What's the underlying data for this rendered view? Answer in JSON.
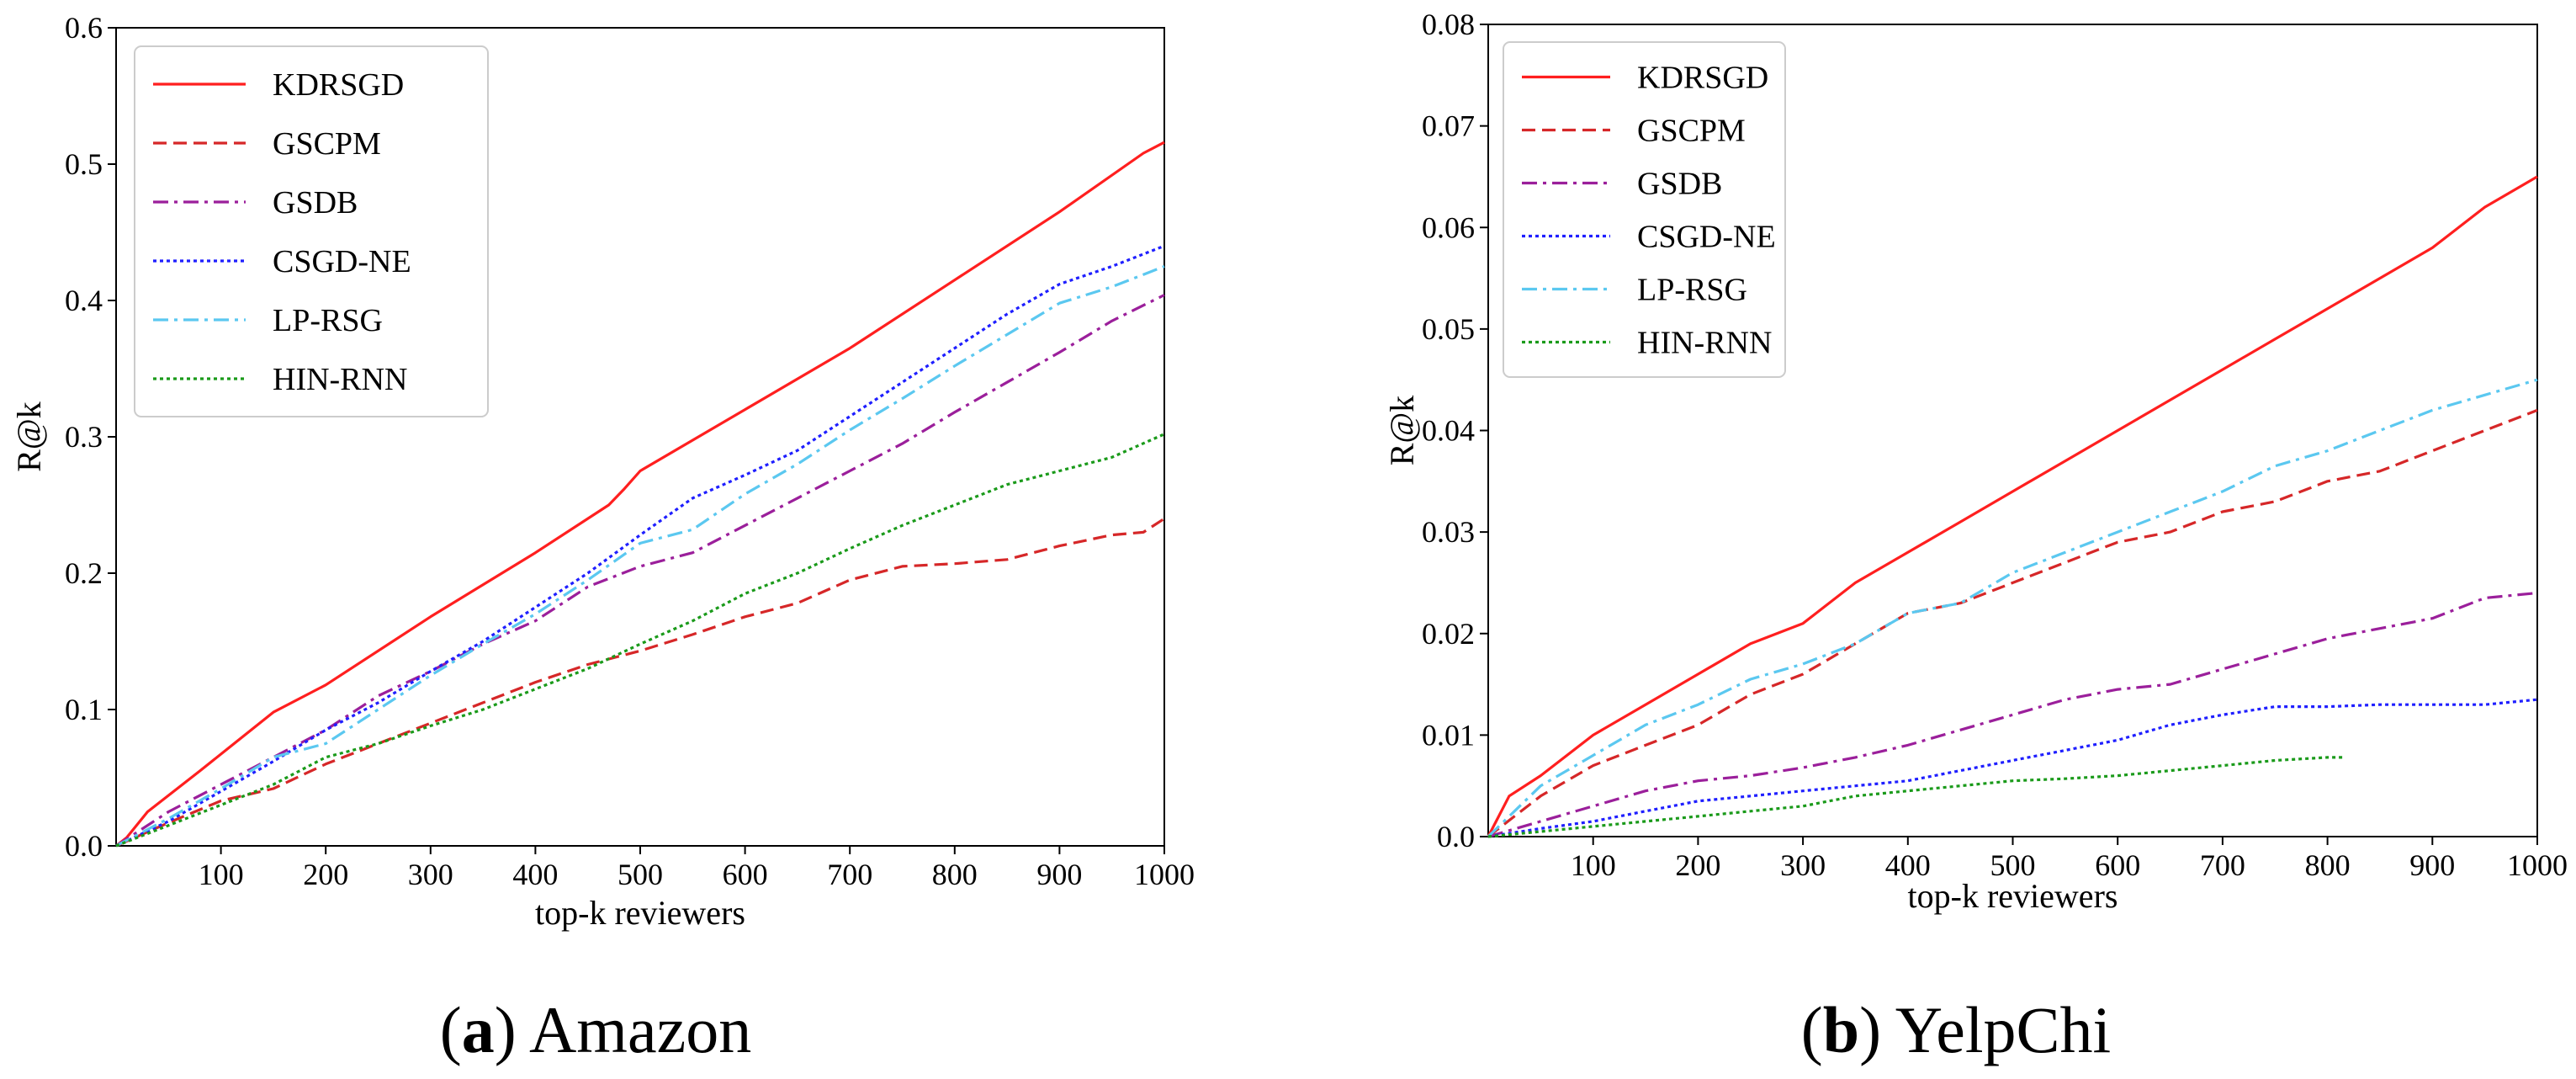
{
  "chart_data": [
    {
      "type": "line",
      "panel": "a",
      "caption_letter": "a",
      "caption_name": "Amazon",
      "xlabel": "top-k reviewers",
      "ylabel": "R@k",
      "xlim": [
        0,
        1000
      ],
      "ylim": [
        0,
        0.6
      ],
      "xticks": [
        100,
        200,
        300,
        400,
        500,
        600,
        700,
        800,
        900,
        1000
      ],
      "yticks": [
        0.0,
        0.1,
        0.2,
        0.3,
        0.4,
        0.5,
        0.6
      ],
      "ytick_labels": [
        "0.0",
        "0.1",
        "0.2",
        "0.3",
        "0.4",
        "0.5",
        "0.6"
      ],
      "legend_position": "top-left",
      "series": [
        {
          "name": "KDRSGD",
          "color": "#ff1f1f",
          "dash": "solid",
          "x": [
            0,
            10,
            30,
            80,
            150,
            200,
            300,
            400,
            470,
            485,
            500,
            600,
            700,
            800,
            900,
            980,
            1000
          ],
          "y": [
            0,
            0.006,
            0.025,
            0.055,
            0.098,
            0.118,
            0.168,
            0.215,
            0.25,
            0.262,
            0.275,
            0.32,
            0.365,
            0.415,
            0.465,
            0.508,
            0.516
          ]
        },
        {
          "name": "GSCPM",
          "color": "#d62728",
          "dash": "dashed",
          "x": [
            0,
            50,
            100,
            150,
            200,
            250,
            300,
            350,
            400,
            450,
            500,
            550,
            600,
            650,
            700,
            750,
            800,
            850,
            900,
            950,
            980,
            1000
          ],
          "y": [
            0,
            0.017,
            0.033,
            0.042,
            0.06,
            0.075,
            0.09,
            0.105,
            0.12,
            0.133,
            0.143,
            0.155,
            0.168,
            0.178,
            0.195,
            0.205,
            0.207,
            0.21,
            0.22,
            0.228,
            0.23,
            0.24
          ]
        },
        {
          "name": "GSDB",
          "color": "#9b1f9b",
          "dash": "dashdot",
          "x": [
            0,
            50,
            100,
            150,
            200,
            250,
            300,
            350,
            400,
            450,
            500,
            550,
            600,
            650,
            700,
            750,
            800,
            850,
            900,
            950,
            1000
          ],
          "y": [
            0,
            0.025,
            0.045,
            0.065,
            0.085,
            0.11,
            0.128,
            0.148,
            0.165,
            0.19,
            0.205,
            0.215,
            0.235,
            0.255,
            0.275,
            0.295,
            0.318,
            0.34,
            0.362,
            0.385,
            0.404
          ]
        },
        {
          "name": "CSGD-NE",
          "color": "#1f1fff",
          "dash": "dotted",
          "x": [
            0,
            50,
            100,
            150,
            200,
            250,
            300,
            350,
            400,
            450,
            500,
            550,
            600,
            650,
            700,
            750,
            800,
            850,
            900,
            950,
            1000
          ],
          "y": [
            0,
            0.018,
            0.04,
            0.062,
            0.085,
            0.105,
            0.128,
            0.15,
            0.175,
            0.2,
            0.228,
            0.255,
            0.272,
            0.29,
            0.315,
            0.34,
            0.365,
            0.39,
            0.412,
            0.425,
            0.44
          ]
        },
        {
          "name": "LP-RSG",
          "color": "#5bc8f0",
          "dash": "dashdot",
          "x": [
            0,
            50,
            100,
            150,
            200,
            250,
            300,
            350,
            400,
            450,
            500,
            550,
            600,
            650,
            700,
            750,
            800,
            850,
            900,
            950,
            1000
          ],
          "y": [
            0,
            0.02,
            0.042,
            0.065,
            0.075,
            0.1,
            0.125,
            0.148,
            0.17,
            0.195,
            0.222,
            0.232,
            0.258,
            0.28,
            0.305,
            0.328,
            0.352,
            0.375,
            0.398,
            0.41,
            0.425
          ]
        },
        {
          "name": "HIN-RNN",
          "color": "#1a9a1a",
          "dash": "dotted",
          "x": [
            0,
            50,
            100,
            150,
            200,
            250,
            300,
            350,
            400,
            450,
            500,
            550,
            600,
            650,
            700,
            750,
            800,
            850,
            900,
            950,
            1000
          ],
          "y": [
            0,
            0.015,
            0.03,
            0.045,
            0.065,
            0.075,
            0.088,
            0.1,
            0.115,
            0.13,
            0.148,
            0.165,
            0.185,
            0.2,
            0.218,
            0.235,
            0.25,
            0.265,
            0.275,
            0.285,
            0.302
          ]
        }
      ]
    },
    {
      "type": "line",
      "panel": "b",
      "caption_letter": "b",
      "caption_name": "YelpChi",
      "xlabel": "top-k reviewers",
      "ylabel": "R@k",
      "xlim": [
        0,
        1000
      ],
      "ylim": [
        0,
        0.08
      ],
      "xticks": [
        100,
        200,
        300,
        400,
        500,
        600,
        700,
        800,
        900,
        1000
      ],
      "yticks": [
        0.0,
        0.01,
        0.02,
        0.03,
        0.04,
        0.05,
        0.06,
        0.07,
        0.08
      ],
      "ytick_labels": [
        "0.0",
        "0.01",
        "0.02",
        "0.03",
        "0.04",
        "0.05",
        "0.06",
        "0.07",
        "0.08"
      ],
      "legend_position": "top-left",
      "series": [
        {
          "name": "KDRSGD",
          "color": "#ff1f1f",
          "dash": "solid",
          "x": [
            0,
            20,
            50,
            100,
            150,
            200,
            250,
            300,
            350,
            400,
            450,
            500,
            550,
            600,
            650,
            700,
            750,
            800,
            850,
            900,
            950,
            1000
          ],
          "y": [
            0,
            0.004,
            0.006,
            0.01,
            0.013,
            0.016,
            0.019,
            0.021,
            0.025,
            0.028,
            0.031,
            0.034,
            0.037,
            0.04,
            0.043,
            0.046,
            0.049,
            0.052,
            0.055,
            0.058,
            0.062,
            0.065
          ]
        },
        {
          "name": "GSCPM",
          "color": "#d62728",
          "dash": "dashed",
          "x": [
            0,
            50,
            100,
            150,
            200,
            250,
            300,
            350,
            400,
            450,
            500,
            550,
            600,
            650,
            700,
            750,
            800,
            850,
            900,
            950,
            1000
          ],
          "y": [
            0,
            0.004,
            0.007,
            0.009,
            0.011,
            0.014,
            0.016,
            0.019,
            0.022,
            0.023,
            0.025,
            0.027,
            0.029,
            0.03,
            0.032,
            0.033,
            0.035,
            0.036,
            0.038,
            0.04,
            0.042
          ]
        },
        {
          "name": "GSDB",
          "color": "#9b1f9b",
          "dash": "dashdot",
          "x": [
            0,
            50,
            100,
            150,
            200,
            250,
            300,
            350,
            400,
            450,
            500,
            550,
            600,
            650,
            700,
            750,
            800,
            850,
            900,
            950,
            1000
          ],
          "y": [
            0,
            0.0015,
            0.003,
            0.0045,
            0.0055,
            0.006,
            0.0068,
            0.0078,
            0.009,
            0.0105,
            0.012,
            0.0135,
            0.0145,
            0.015,
            0.0165,
            0.018,
            0.0195,
            0.0205,
            0.0215,
            0.0235,
            0.024
          ]
        },
        {
          "name": "CSGD-NE",
          "color": "#1f1fff",
          "dash": "dotted",
          "x": [
            0,
            50,
            100,
            150,
            200,
            250,
            300,
            350,
            400,
            450,
            500,
            550,
            600,
            650,
            700,
            750,
            800,
            850,
            900,
            950,
            1000
          ],
          "y": [
            0,
            0.0008,
            0.0015,
            0.0025,
            0.0035,
            0.004,
            0.0045,
            0.005,
            0.0055,
            0.0065,
            0.0075,
            0.0085,
            0.0095,
            0.011,
            0.012,
            0.0128,
            0.0128,
            0.013,
            0.013,
            0.013,
            0.0135
          ]
        },
        {
          "name": "LP-RSG",
          "color": "#5bc8f0",
          "dash": "dashdot",
          "x": [
            0,
            50,
            100,
            150,
            200,
            250,
            300,
            350,
            400,
            450,
            500,
            550,
            600,
            650,
            700,
            750,
            800,
            850,
            900,
            950,
            1000
          ],
          "y": [
            0,
            0.005,
            0.008,
            0.011,
            0.013,
            0.0155,
            0.017,
            0.019,
            0.022,
            0.023,
            0.026,
            0.028,
            0.03,
            0.032,
            0.034,
            0.0365,
            0.038,
            0.04,
            0.042,
            0.0435,
            0.045
          ]
        },
        {
          "name": "HIN-RNN",
          "color": "#1a9a1a",
          "dash": "dotted",
          "x": [
            0,
            50,
            100,
            150,
            200,
            250,
            300,
            350,
            400,
            450,
            500,
            550,
            600,
            650,
            700,
            750,
            800,
            815
          ],
          "y": [
            0,
            0.0005,
            0.001,
            0.0015,
            0.002,
            0.0025,
            0.003,
            0.004,
            0.0045,
            0.005,
            0.0055,
            0.0057,
            0.006,
            0.0065,
            0.007,
            0.0075,
            0.0078,
            0.0078
          ]
        }
      ]
    }
  ]
}
